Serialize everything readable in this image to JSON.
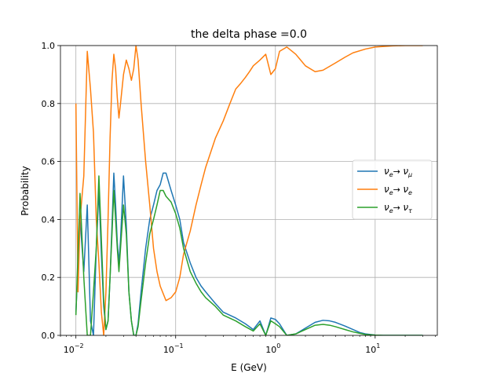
{
  "chart_data": {
    "type": "line",
    "title": "the delta phase =0.0",
    "xlabel": "E (GeV)",
    "ylabel": "Probability",
    "xscale": "log",
    "xlim": [
      0.007,
      42
    ],
    "ylim": [
      0,
      1
    ],
    "grid": true,
    "legend": {
      "placement": "center-right",
      "entries": [
        {
          "label": "νe→ νμ",
          "sym": "ν",
          "sub1": "e",
          "arrow": "→ ",
          "sym2": "ν",
          "sub2": "μ",
          "color": "#1f77b4"
        },
        {
          "label": "νe→ νe",
          "sym": "ν",
          "sub1": "e",
          "arrow": "→ ",
          "sym2": "ν",
          "sub2": "e",
          "color": "#ff7f0e"
        },
        {
          "label": "νe→ ντ",
          "sym": "ν",
          "sub1": "e",
          "arrow": "→ ",
          "sym2": "ν",
          "sub2": "τ",
          "color": "#2ca02c"
        }
      ]
    },
    "yticks": [
      {
        "value": 0.0,
        "label": "0.0"
      },
      {
        "value": 0.2,
        "label": "0.2"
      },
      {
        "value": 0.4,
        "label": "0.4"
      },
      {
        "value": 0.6,
        "label": "0.6"
      },
      {
        "value": 0.8,
        "label": "0.8"
      },
      {
        "value": 1.0,
        "label": "1.0"
      }
    ],
    "xticks": [
      {
        "value": 0.01,
        "base": "10",
        "exp": "−2"
      },
      {
        "value": 0.1,
        "base": "10",
        "exp": "−1"
      },
      {
        "value": 1,
        "base": "10",
        "exp": "0"
      },
      {
        "value": 10,
        "base": "10",
        "exp": "1"
      }
    ],
    "series": [
      {
        "name": "νe→ νμ",
        "color": "#1f77b4",
        "x": [
          0.01,
          0.011,
          0.012,
          0.013,
          0.014,
          0.015,
          0.016,
          0.017,
          0.018,
          0.019,
          0.02,
          0.021,
          0.022,
          0.023,
          0.024,
          0.025,
          0.026,
          0.027,
          0.028,
          0.03,
          0.032,
          0.034,
          0.036,
          0.038,
          0.04,
          0.042,
          0.045,
          0.05,
          0.055,
          0.06,
          0.065,
          0.07,
          0.075,
          0.08,
          0.09,
          0.1,
          0.11,
          0.12,
          0.14,
          0.16,
          0.18,
          0.2,
          0.25,
          0.3,
          0.4,
          0.5,
          0.6,
          0.7,
          0.8,
          0.9,
          1.0,
          1.1,
          1.3,
          1.6,
          2.0,
          2.5,
          3.0,
          3.5,
          4.0,
          5.0,
          6.0,
          7.0,
          8.0,
          10.0,
          12.0,
          15.0,
          20.0,
          30.0
        ],
        "y": [
          0.08,
          0.4,
          0.22,
          0.45,
          0.05,
          0.0,
          0.3,
          0.5,
          0.28,
          0.1,
          0.02,
          0.05,
          0.2,
          0.38,
          0.56,
          0.45,
          0.32,
          0.25,
          0.33,
          0.55,
          0.38,
          0.15,
          0.05,
          0.0,
          0.0,
          0.04,
          0.15,
          0.3,
          0.4,
          0.45,
          0.5,
          0.52,
          0.56,
          0.56,
          0.5,
          0.45,
          0.4,
          0.32,
          0.25,
          0.2,
          0.17,
          0.15,
          0.11,
          0.08,
          0.06,
          0.04,
          0.02,
          0.05,
          0.0,
          0.06,
          0.055,
          0.04,
          0.0,
          0.005,
          0.025,
          0.045,
          0.052,
          0.05,
          0.045,
          0.032,
          0.02,
          0.01,
          0.005,
          0.001,
          0.0,
          0.0,
          0.0,
          0.0
        ]
      },
      {
        "name": "νe→ νe",
        "color": "#ff7f0e",
        "x": [
          0.01,
          0.0105,
          0.011,
          0.012,
          0.013,
          0.014,
          0.015,
          0.016,
          0.017,
          0.018,
          0.019,
          0.02,
          0.021,
          0.022,
          0.023,
          0.024,
          0.025,
          0.026,
          0.027,
          0.028,
          0.03,
          0.032,
          0.034,
          0.036,
          0.038,
          0.04,
          0.042,
          0.045,
          0.05,
          0.055,
          0.06,
          0.065,
          0.07,
          0.08,
          0.09,
          0.1,
          0.11,
          0.12,
          0.14,
          0.16,
          0.18,
          0.2,
          0.25,
          0.3,
          0.35,
          0.4,
          0.45,
          0.5,
          0.55,
          0.6,
          0.7,
          0.8,
          0.9,
          1.0,
          1.1,
          1.3,
          1.6,
          2.0,
          2.5,
          3.0,
          4.0,
          5.0,
          6.0,
          8.0,
          10.0,
          15.0,
          20.0,
          30.0
        ],
        "y": [
          0.8,
          0.15,
          0.4,
          0.55,
          0.98,
          0.85,
          0.7,
          0.4,
          0.25,
          0.08,
          0.0,
          0.15,
          0.4,
          0.68,
          0.88,
          0.97,
          0.92,
          0.82,
          0.75,
          0.8,
          0.9,
          0.95,
          0.92,
          0.88,
          0.92,
          1.0,
          0.95,
          0.8,
          0.6,
          0.45,
          0.3,
          0.22,
          0.17,
          0.12,
          0.13,
          0.15,
          0.2,
          0.28,
          0.36,
          0.45,
          0.52,
          0.58,
          0.68,
          0.74,
          0.8,
          0.85,
          0.87,
          0.89,
          0.91,
          0.93,
          0.95,
          0.97,
          0.9,
          0.92,
          0.98,
          0.995,
          0.97,
          0.93,
          0.91,
          0.915,
          0.94,
          0.96,
          0.975,
          0.988,
          0.995,
          0.999,
          1.0,
          1.0
        ]
      },
      {
        "name": "νe→ ντ",
        "color": "#2ca02c",
        "x": [
          0.01,
          0.011,
          0.012,
          0.013,
          0.014,
          0.015,
          0.016,
          0.017,
          0.018,
          0.019,
          0.02,
          0.021,
          0.022,
          0.023,
          0.024,
          0.025,
          0.026,
          0.027,
          0.028,
          0.03,
          0.032,
          0.034,
          0.036,
          0.038,
          0.04,
          0.042,
          0.045,
          0.05,
          0.055,
          0.06,
          0.065,
          0.07,
          0.075,
          0.08,
          0.09,
          0.1,
          0.11,
          0.12,
          0.14,
          0.16,
          0.18,
          0.2,
          0.25,
          0.3,
          0.4,
          0.5,
          0.6,
          0.7,
          0.8,
          0.9,
          1.0,
          1.1,
          1.3,
          1.6,
          2.0,
          2.5,
          3.0,
          3.5,
          4.0,
          5.0,
          6.0,
          7.0,
          8.0,
          10.0,
          12.0,
          15.0,
          20.0,
          30.0
        ],
        "y": [
          0.07,
          0.49,
          0.2,
          0.0,
          0.0,
          0.15,
          0.3,
          0.55,
          0.33,
          0.12,
          0.02,
          0.05,
          0.2,
          0.35,
          0.5,
          0.4,
          0.3,
          0.22,
          0.3,
          0.45,
          0.35,
          0.15,
          0.05,
          0.0,
          0.0,
          0.03,
          0.12,
          0.25,
          0.35,
          0.4,
          0.45,
          0.5,
          0.5,
          0.48,
          0.46,
          0.42,
          0.37,
          0.3,
          0.22,
          0.18,
          0.15,
          0.13,
          0.1,
          0.07,
          0.05,
          0.03,
          0.015,
          0.04,
          0.0,
          0.05,
          0.04,
          0.03,
          0.0,
          0.005,
          0.02,
          0.035,
          0.038,
          0.035,
          0.03,
          0.02,
          0.012,
          0.007,
          0.003,
          0.001,
          0.0,
          0.0,
          0.0,
          0.0
        ]
      }
    ]
  }
}
